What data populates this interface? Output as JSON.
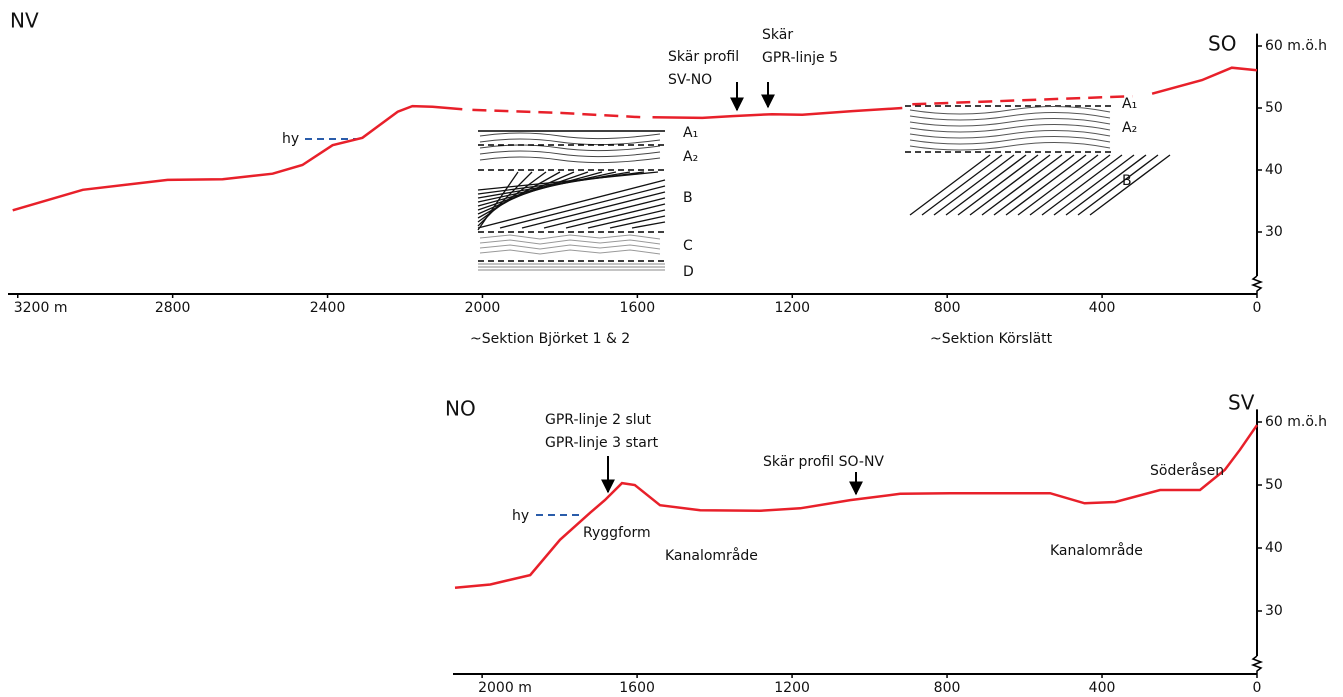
{
  "chart_data": [
    {
      "type": "line",
      "annotations": [
        "NV",
        "SO",
        "hy",
        "Skär profil",
        "SV-NO",
        "Skär",
        "GPR-linje 5",
        "A₁",
        "A₂",
        "B",
        "C",
        "D",
        "A₁",
        "A₂",
        "B",
        "~Sektion Björket 1 & 2",
        "~Sektion Körslätt"
      ],
      "x": [
        3213,
        3032,
        2813,
        2671,
        2542,
        2465,
        2387,
        2310,
        2219,
        2181,
        2129,
        2052,
        2026,
        1794,
        1587,
        1561,
        1432,
        1355,
        1252,
        1174,
        1045,
        916,
        890,
        322,
        271,
        142,
        65,
        0
      ],
      "series": [
        {
          "color": "#e8202a",
          "dashed": false,
          "values": [
            33.5,
            36.8,
            38.4,
            38.5,
            39.4,
            40.8,
            44,
            45.2,
            49.4,
            50.3,
            50.2,
            49.8,
            null,
            null,
            null,
            48.5,
            48.4,
            48.7,
            49,
            48.9,
            49.5,
            50,
            null,
            null,
            52.3,
            54.5,
            56.5,
            56.1
          ]
        },
        {
          "color": "#e8202a",
          "dashed": true,
          "values": [
            null,
            null,
            null,
            null,
            null,
            null,
            null,
            null,
            null,
            null,
            null,
            null,
            49.7,
            49.2,
            48.5,
            null,
            null,
            null,
            null,
            null,
            null,
            null,
            50.6,
            51.9,
            null,
            null,
            null,
            null
          ]
        }
      ],
      "xlim": [
        3220,
        0
      ],
      "xticks": [
        {
          "value": 3200,
          "label": "3200 m"
        },
        2800,
        2400,
        2000,
        1600,
        1200,
        800,
        400,
        0
      ],
      "ylim": [
        20,
        62
      ],
      "yticks": [
        {
          "value": 60,
          "label": "60 m.ö.h"
        },
        50,
        40,
        30
      ]
    },
    {
      "type": "line",
      "annotations": [
        "NO",
        "SV",
        "GPR-linje 2 slut",
        "GPR-linje 3 start",
        "Skär profil SO-NV",
        "hy",
        "Ryggform",
        "Kanalområde",
        "Kanalområde",
        "Söderåsen"
      ],
      "x": [
        2070,
        1979,
        1876,
        1799,
        1721,
        1683,
        1639,
        1606,
        1541,
        1437,
        1283,
        1179,
        1050,
        921,
        792,
        534,
        445,
        366,
        250,
        147,
        83,
        44,
        0
      ],
      "series": [
        {
          "color": "#e8202a",
          "dashed": false,
          "values": [
            33.7,
            34.2,
            35.7,
            41.3,
            45.6,
            47.6,
            50.3,
            50,
            46.8,
            46,
            45.9,
            46.3,
            47.6,
            48.6,
            48.7,
            48.7,
            47.1,
            47.3,
            49.2,
            49.2,
            52.4,
            55.6,
            59.5
          ]
        }
      ],
      "xlim": [
        2070,
        0
      ],
      "xticks": [
        {
          "value": 2000,
          "label": "2000 m"
        },
        1600,
        1200,
        800,
        400,
        0
      ],
      "ylim": [
        20,
        62
      ],
      "yticks": [
        {
          "value": 60,
          "label": "60 m.ö.h"
        },
        50,
        40,
        30
      ]
    }
  ]
}
